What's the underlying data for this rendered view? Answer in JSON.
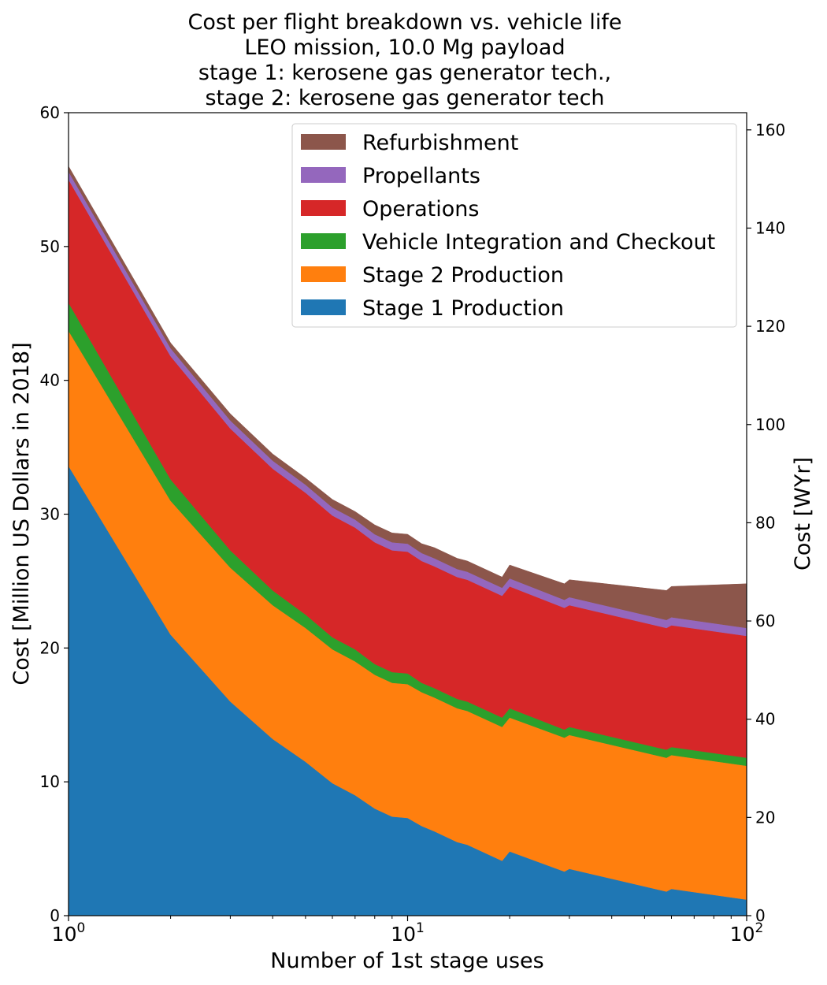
{
  "chart_data": {
    "type": "area",
    "stacked": true,
    "title_lines": [
      "Cost per flight breakdown vs. vehicle life",
      "LEO mission, 10.0 Mg payload",
      "stage 1: kerosene gas generator tech.,",
      "stage 2: kerosene gas generator tech"
    ],
    "xlabel": "Number of 1st stage uses",
    "ylabel": "Cost [Million US Dollars in 2018]",
    "ylabel_right": "Cost [WYr]",
    "xscale": "log",
    "xlim": [
      1,
      100
    ],
    "ylim": [
      0,
      60
    ],
    "ylim_right": [
      0,
      163.5
    ],
    "x_ticks": [
      {
        "value": 1,
        "base": "10",
        "exp": "0"
      },
      {
        "value": 10,
        "base": "10",
        "exp": "1"
      },
      {
        "value": 100,
        "base": "10",
        "exp": "2"
      }
    ],
    "y_ticks": [
      "0",
      "10",
      "20",
      "30",
      "40",
      "50",
      "60"
    ],
    "y_ticks_right": [
      "0",
      "20",
      "40",
      "60",
      "80",
      "100",
      "120",
      "140",
      "160"
    ],
    "legend_position": "top-right",
    "legend_order": [
      "Refurbishment",
      "Propellants",
      "Operations",
      "Vehicle Integration and Checkout",
      "Stage 2 Production",
      "Stage 1 Production"
    ],
    "grid": false,
    "x": [
      1,
      2,
      3,
      4,
      5,
      6,
      7,
      8,
      9,
      10,
      11,
      12,
      14,
      15,
      19,
      20,
      29,
      30,
      58,
      60,
      100
    ],
    "series": [
      {
        "name": "Stage 1 Production",
        "color": "#1f77b4",
        "values": [
          33.6,
          21.0,
          16.0,
          13.2,
          11.5,
          9.9,
          9.0,
          8.0,
          7.4,
          7.3,
          6.7,
          6.3,
          5.5,
          5.3,
          4.1,
          4.8,
          3.3,
          3.5,
          1.8,
          2.0,
          1.2
        ]
      },
      {
        "name": "Stage 2 Production",
        "color": "#ff7f0e",
        "values": [
          10.1,
          10.0,
          10.0,
          10.0,
          10.0,
          10.0,
          10.0,
          10.0,
          10.0,
          10.0,
          10.0,
          10.0,
          10.0,
          10.0,
          10.0,
          10.0,
          10.0,
          10.0,
          10.0,
          10.0,
          10.0
        ]
      },
      {
        "name": "Vehicle Integration and Checkout",
        "color": "#2ca02c",
        "values": [
          2.1,
          1.6,
          1.3,
          1.1,
          1.0,
          0.9,
          0.9,
          0.8,
          0.8,
          0.8,
          0.7,
          0.7,
          0.7,
          0.7,
          0.7,
          0.7,
          0.6,
          0.6,
          0.6,
          0.6,
          0.6
        ]
      },
      {
        "name": "Operations",
        "color": "#d62728",
        "values": [
          9.2,
          9.2,
          9.1,
          9.1,
          9.1,
          9.1,
          9.1,
          9.1,
          9.1,
          9.1,
          9.1,
          9.1,
          9.1,
          9.1,
          9.1,
          9.1,
          9.1,
          9.1,
          9.1,
          9.1,
          9.1
        ]
      },
      {
        "name": "Propellants",
        "color": "#9467bd",
        "values": [
          0.6,
          0.6,
          0.6,
          0.6,
          0.6,
          0.6,
          0.6,
          0.6,
          0.6,
          0.6,
          0.6,
          0.6,
          0.6,
          0.6,
          0.6,
          0.6,
          0.6,
          0.6,
          0.6,
          0.6,
          0.6
        ]
      },
      {
        "name": "Refurbishment",
        "color": "#8c564b",
        "values": [
          0.4,
          0.4,
          0.5,
          0.5,
          0.5,
          0.6,
          0.6,
          0.7,
          0.7,
          0.7,
          0.7,
          0.8,
          0.8,
          0.8,
          0.8,
          1.0,
          1.2,
          1.3,
          2.2,
          2.3,
          3.3
        ]
      }
    ]
  }
}
